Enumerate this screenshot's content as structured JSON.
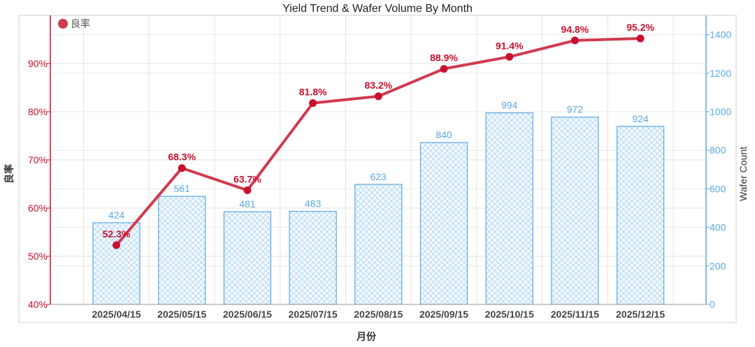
{
  "chart_data": {
    "type": "bar+line",
    "title": "Yield Trend & Wafer Volume By Month",
    "xlabel": "月份",
    "ylabel_left": "良率",
    "ylabel_right": "Wafer Count",
    "categories": [
      "2025/04/15",
      "2025/05/15",
      "2025/06/15",
      "2025/07/15",
      "2025/08/15",
      "2025/09/15",
      "2025/10/15",
      "2025/11/15",
      "2025/12/15"
    ],
    "yield_series": {
      "name": "良率",
      "values": [
        52.3,
        68.3,
        63.7,
        81.8,
        83.2,
        88.9,
        91.4,
        94.8,
        95.2
      ],
      "labels": [
        "52.3%",
        "68.3%",
        "63.7%",
        "81.8%",
        "83.2%",
        "88.9%",
        "91.4%",
        "94.8%",
        "95.2%"
      ],
      "color": "#d03a4e"
    },
    "wafer_series": {
      "values": [
        424,
        561,
        481,
        483,
        623,
        840,
        994,
        972,
        924
      ],
      "labels": [
        "424",
        "561",
        "481",
        "483",
        "623",
        "840",
        "994",
        "972",
        "924"
      ],
      "color": "#5aa8e6",
      "pattern": "crosshatch"
    },
    "left_axis": {
      "range": [
        40,
        100
      ],
      "ticks": [
        40,
        50,
        60,
        70,
        80,
        90
      ],
      "tick_labels": [
        "40%",
        "50%",
        "60%",
        "70%",
        "80%",
        "90%"
      ],
      "color": "#c8102e"
    },
    "right_axis": {
      "range": [
        0,
        1500
      ],
      "ticks": [
        0,
        200,
        400,
        600,
        800,
        1000,
        1200,
        1400
      ],
      "tick_labels": [
        "0",
        "200",
        "400",
        "600",
        "800",
        "1000",
        "1200",
        "1400"
      ],
      "color": "#5aa8e6"
    },
    "grid": true,
    "legend_position": "top-left"
  }
}
